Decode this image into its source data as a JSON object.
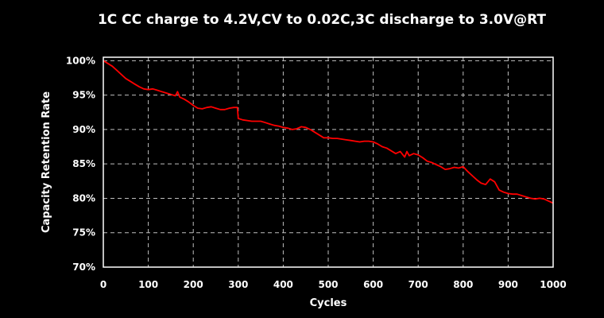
{
  "chart_data": {
    "type": "line",
    "title": "1C CC charge to 4.2V,CV to 0.02C,3C discharge to 3.0V@RT",
    "xlabel": "Cycles",
    "ylabel": "Capacity Retention Rate",
    "xlim": [
      0,
      1000
    ],
    "ylim": [
      70,
      100.5
    ],
    "x_ticks": [
      0,
      100,
      200,
      300,
      400,
      500,
      600,
      700,
      800,
      900,
      1000
    ],
    "y_ticks": [
      70,
      75,
      80,
      85,
      90,
      95,
      100
    ],
    "y_tick_labels": [
      "70%",
      "75%",
      "80%",
      "85%",
      "90%",
      "95%",
      "100%"
    ],
    "grid": true,
    "legend": "none",
    "series": [
      {
        "color": "#ff0000",
        "x": [
          0,
          10,
          20,
          30,
          40,
          50,
          60,
          70,
          80,
          90,
          100,
          110,
          120,
          130,
          140,
          150,
          160,
          165,
          170,
          180,
          190,
          200,
          210,
          220,
          230,
          240,
          250,
          260,
          270,
          280,
          290,
          298,
          300,
          310,
          320,
          330,
          340,
          350,
          360,
          370,
          380,
          390,
          400,
          410,
          420,
          430,
          440,
          450,
          460,
          470,
          480,
          490,
          500,
          510,
          520,
          530,
          540,
          550,
          560,
          570,
          580,
          590,
          600,
          610,
          620,
          630,
          640,
          650,
          660,
          670,
          675,
          680,
          690,
          700,
          710,
          720,
          730,
          740,
          750,
          760,
          770,
          780,
          790,
          800,
          810,
          820,
          830,
          840,
          850,
          860,
          870,
          880,
          890,
          900,
          910,
          920,
          930,
          940,
          950,
          960,
          970,
          980,
          990,
          1000
        ],
        "y": [
          100.0,
          99.6,
          99.2,
          98.6,
          98.0,
          97.4,
          97.0,
          96.6,
          96.2,
          95.9,
          95.8,
          95.9,
          95.7,
          95.5,
          95.3,
          95.1,
          94.9,
          95.5,
          94.7,
          94.4,
          94.0,
          93.5,
          93.1,
          93.0,
          93.2,
          93.3,
          93.1,
          92.9,
          92.9,
          93.1,
          93.2,
          93.2,
          91.6,
          91.4,
          91.3,
          91.2,
          91.2,
          91.2,
          91.0,
          90.8,
          90.6,
          90.5,
          90.3,
          90.2,
          90.0,
          90.1,
          90.4,
          90.3,
          90.0,
          89.6,
          89.2,
          88.8,
          88.8,
          88.7,
          88.7,
          88.6,
          88.5,
          88.4,
          88.3,
          88.2,
          88.3,
          88.3,
          88.2,
          87.9,
          87.5,
          87.3,
          86.9,
          86.5,
          86.8,
          86.0,
          86.8,
          86.2,
          86.5,
          86.3,
          85.9,
          85.4,
          85.2,
          84.9,
          84.6,
          84.2,
          84.3,
          84.5,
          84.4,
          84.6,
          83.9,
          83.3,
          82.7,
          82.2,
          82.0,
          82.8,
          82.4,
          81.2,
          80.9,
          80.7,
          80.6,
          80.6,
          80.4,
          80.2,
          80.0,
          79.9,
          80.0,
          79.9,
          79.6,
          79.3
        ]
      }
    ]
  }
}
